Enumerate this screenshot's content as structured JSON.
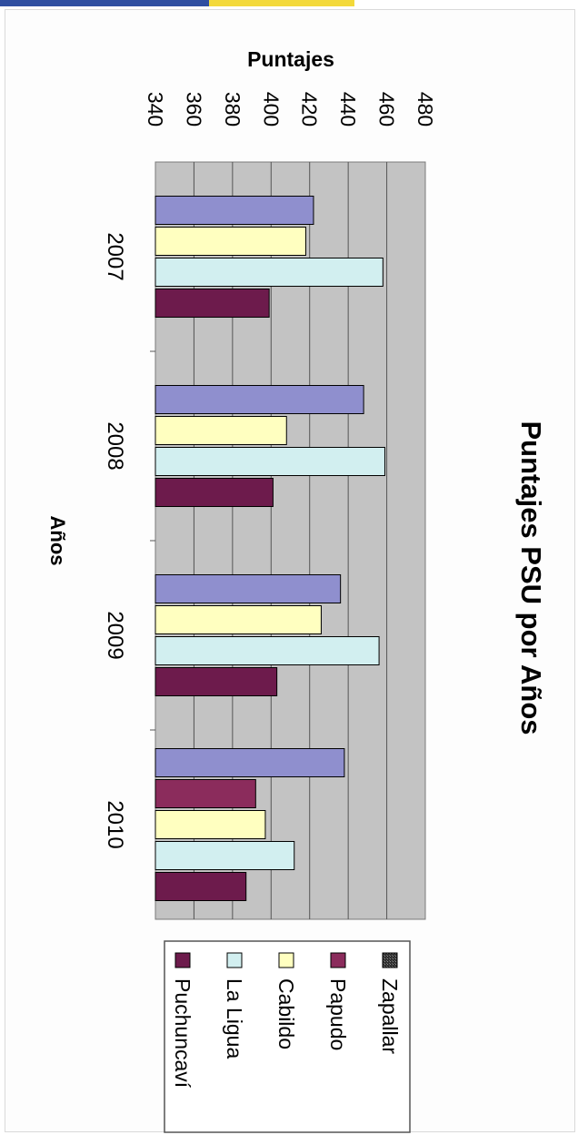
{
  "chart_data": {
    "type": "bar",
    "orientation": "horizontal",
    "title": "Puntajes PSU  por Años",
    "xlabel": "Puntajes",
    "ylabel": "Años",
    "xlim": [
      340,
      480
    ],
    "x_ticks": [
      "340",
      "360",
      "380",
      "400",
      "420",
      "440",
      "460",
      "480"
    ],
    "categories": [
      "2007",
      "2008",
      "2009",
      "2010"
    ],
    "grid": true,
    "legend_position": "bottom",
    "series": [
      {
        "name": "Zapallar",
        "color": "#8f8fce",
        "values": [
          422,
          448,
          436,
          438
        ]
      },
      {
        "name": "Papudo",
        "color": "#8b2c5c",
        "values": [
          null,
          null,
          null,
          392
        ]
      },
      {
        "name": "Cabildo",
        "color": "#ffffc0",
        "values": [
          418,
          408,
          426,
          397
        ]
      },
      {
        "name": "La Ligua",
        "color": "#d2eff0",
        "values": [
          458,
          459,
          456,
          412
        ]
      },
      {
        "name": "Puchuncaví",
        "color": "#6d1b4c",
        "values": [
          399,
          401,
          403,
          387
        ]
      }
    ],
    "legend": [
      {
        "label": "Zapallar",
        "icon": "dark-patterned-square",
        "color": "#3a3a3a"
      },
      {
        "label": "Papudo",
        "icon": "square",
        "color": "#8b2c5c"
      },
      {
        "label": "Cabildo",
        "icon": "square",
        "color": "#ffffc0"
      },
      {
        "label": "La Ligua",
        "icon": "square",
        "color": "#d2eff0"
      },
      {
        "label": "Puchuncaví",
        "icon": "square",
        "color": "#6d1b4c"
      }
    ]
  }
}
